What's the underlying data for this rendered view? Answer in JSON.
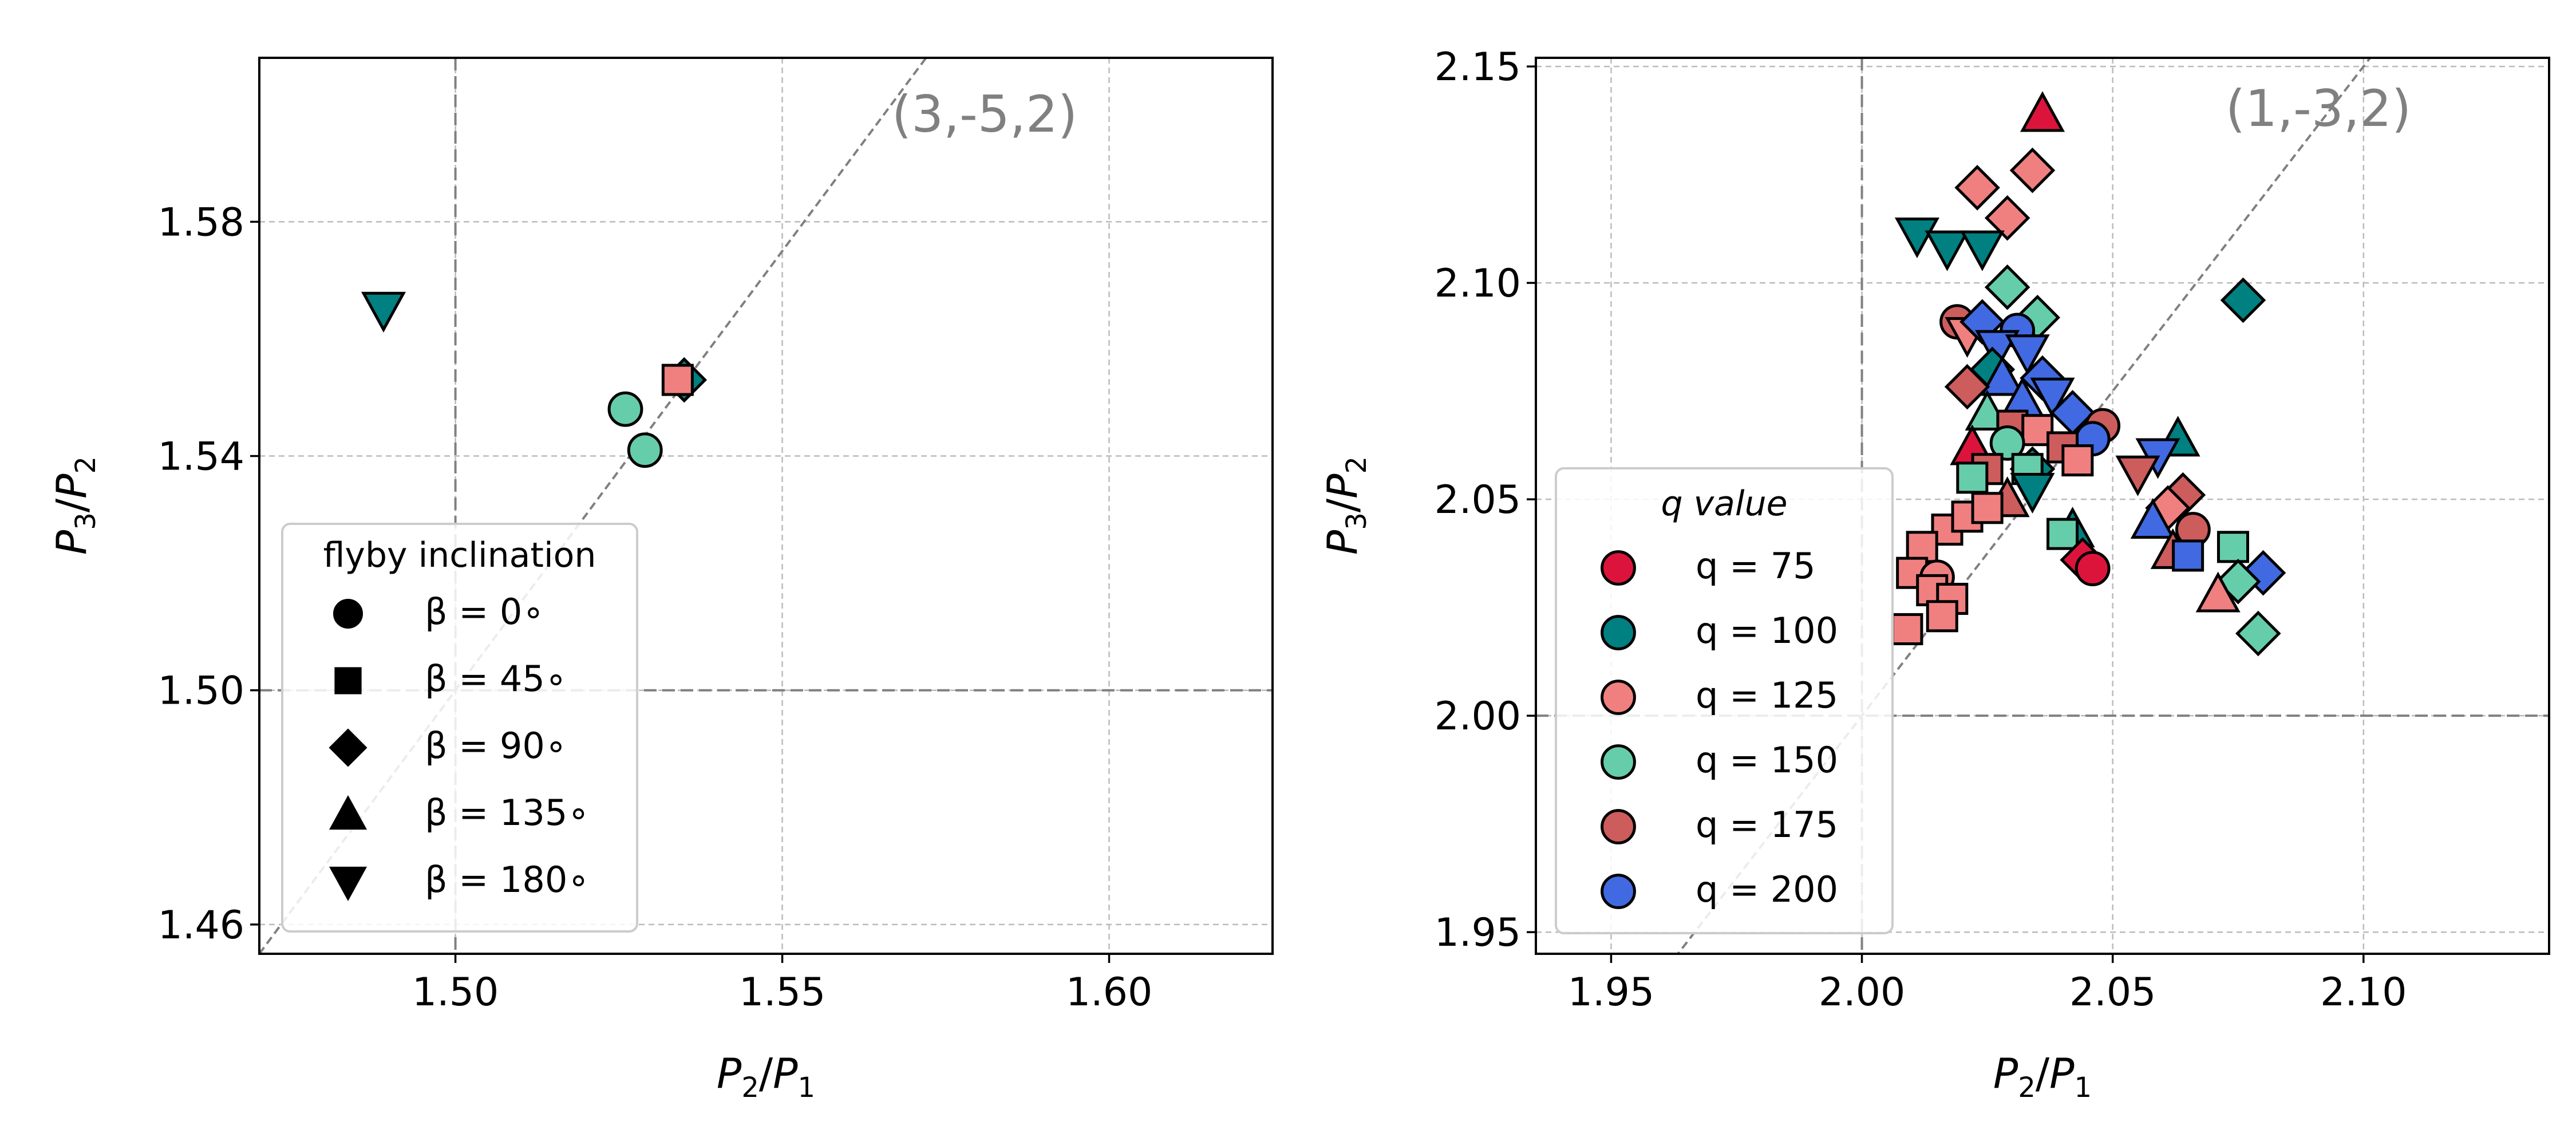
{
  "chart_data": [
    {
      "type": "scatter",
      "xlabel": "P2/P1",
      "ylabel": "P3/P2",
      "xlim": [
        1.47,
        1.625
      ],
      "ylim": [
        1.455,
        1.608
      ],
      "xticks": [
        1.5,
        1.55,
        1.6
      ],
      "yticks": [
        1.46,
        1.5,
        1.54,
        1.58
      ],
      "xtick_labels": [
        "1.50",
        "1.55",
        "1.60"
      ],
      "ytick_labels": [
        "1.46",
        "1.50",
        "1.54",
        "1.58"
      ],
      "grid": true,
      "reference_lines": {
        "x": 1.5,
        "y": 1.5
      },
      "resonance_line": {
        "label": "(3,-5,2)",
        "slope": 1.5,
        "intercept": -0.75
      },
      "legend": {
        "title": "flyby inclination",
        "placement": "lower-left",
        "entries": [
          {
            "label": "β = 0∘",
            "marker": "circle"
          },
          {
            "label": "β = 45∘",
            "marker": "square"
          },
          {
            "label": "β = 90∘",
            "marker": "diamond"
          },
          {
            "label": "β = 135∘",
            "marker": "triangle-up"
          },
          {
            "label": "β = 180∘",
            "marker": "triangle-down"
          }
        ]
      },
      "points": [
        {
          "x": 1.489,
          "y": 1.565,
          "marker": "triangle-down",
          "color": "#008080"
        },
        {
          "x": 1.526,
          "y": 1.548,
          "marker": "circle",
          "color": "#66CDAA"
        },
        {
          "x": 1.529,
          "y": 1.541,
          "marker": "circle",
          "color": "#66CDAA"
        },
        {
          "x": 1.535,
          "y": 1.553,
          "marker": "diamond",
          "color": "#008080"
        },
        {
          "x": 1.534,
          "y": 1.553,
          "marker": "square",
          "color": "#F08080"
        }
      ]
    },
    {
      "type": "scatter",
      "xlabel": "P2/P1",
      "ylabel": "P3/P2",
      "xlim": [
        1.935,
        2.137
      ],
      "ylim": [
        1.945,
        2.152
      ],
      "xticks": [
        1.95,
        2.0,
        2.05,
        2.1
      ],
      "yticks": [
        1.95,
        2.0,
        2.05,
        2.1,
        2.15
      ],
      "xtick_labels": [
        "1.95",
        "2.00",
        "2.05",
        "2.10"
      ],
      "ytick_labels": [
        "1.95",
        "2.00",
        "2.05",
        "2.10",
        "2.15"
      ],
      "grid": true,
      "reference_lines": {
        "x": 2.0,
        "y": 2.0
      },
      "resonance_line": {
        "label": "(1,-3,2)",
        "slope": 1.5,
        "intercept": -1.0
      },
      "legend": {
        "title": "q value",
        "placement": "lower-left",
        "entries": [
          {
            "label": "q = 75",
            "color": "#DC143C"
          },
          {
            "label": "q = 100",
            "color": "#008080"
          },
          {
            "label": "q = 125",
            "color": "#F08080"
          },
          {
            "label": "q = 150",
            "color": "#66CDAA"
          },
          {
            "label": "q = 175",
            "color": "#CD5C5C"
          },
          {
            "label": "q = 200",
            "color": "#4169E1"
          }
        ]
      },
      "points": [
        {
          "x": 2.036,
          "y": 2.139,
          "marker": "triangle-up",
          "color": "#DC143C"
        },
        {
          "x": 2.023,
          "y": 2.122,
          "marker": "diamond",
          "color": "#F08080"
        },
        {
          "x": 2.034,
          "y": 2.126,
          "marker": "diamond",
          "color": "#F08080"
        },
        {
          "x": 2.029,
          "y": 2.115,
          "marker": "diamond",
          "color": "#F08080"
        },
        {
          "x": 2.011,
          "y": 2.111,
          "marker": "triangle-down",
          "color": "#008080"
        },
        {
          "x": 2.017,
          "y": 2.108,
          "marker": "triangle-down",
          "color": "#008080"
        },
        {
          "x": 2.024,
          "y": 2.108,
          "marker": "triangle-down",
          "color": "#008080"
        },
        {
          "x": 2.076,
          "y": 2.096,
          "marker": "diamond",
          "color": "#008080"
        },
        {
          "x": 2.029,
          "y": 2.099,
          "marker": "diamond",
          "color": "#66CDAA"
        },
        {
          "x": 2.035,
          "y": 2.092,
          "marker": "diamond",
          "color": "#66CDAA"
        },
        {
          "x": 2.019,
          "y": 2.091,
          "marker": "circle",
          "color": "#CD5C5C"
        },
        {
          "x": 2.021,
          "y": 2.088,
          "marker": "triangle-down",
          "color": "#F08080"
        },
        {
          "x": 2.024,
          "y": 2.091,
          "marker": "diamond",
          "color": "#4169E1"
        },
        {
          "x": 2.031,
          "y": 2.089,
          "marker": "circle",
          "color": "#4169E1"
        },
        {
          "x": 2.027,
          "y": 2.085,
          "marker": "triangle-down",
          "color": "#4169E1"
        },
        {
          "x": 2.033,
          "y": 2.084,
          "marker": "triangle-down",
          "color": "#4169E1"
        },
        {
          "x": 2.026,
          "y": 2.08,
          "marker": "diamond",
          "color": "#008080"
        },
        {
          "x": 2.036,
          "y": 2.078,
          "marker": "diamond",
          "color": "#4169E1"
        },
        {
          "x": 2.028,
          "y": 2.078,
          "marker": "triangle-up",
          "color": "#4169E1"
        },
        {
          "x": 2.021,
          "y": 2.076,
          "marker": "diamond",
          "color": "#CD5C5C"
        },
        {
          "x": 2.032,
          "y": 2.073,
          "marker": "triangle-up",
          "color": "#4169E1"
        },
        {
          "x": 2.038,
          "y": 2.074,
          "marker": "triangle-down",
          "color": "#4169E1"
        },
        {
          "x": 2.042,
          "y": 2.07,
          "marker": "diamond",
          "color": "#4169E1"
        },
        {
          "x": 2.025,
          "y": 2.07,
          "marker": "triangle-up",
          "color": "#66CDAA"
        },
        {
          "x": 2.048,
          "y": 2.067,
          "marker": "circle",
          "color": "#CD5C5C"
        },
        {
          "x": 2.046,
          "y": 2.064,
          "marker": "circle",
          "color": "#4169E1"
        },
        {
          "x": 2.03,
          "y": 2.067,
          "marker": "square",
          "color": "#CD5C5C"
        },
        {
          "x": 2.035,
          "y": 2.066,
          "marker": "square",
          "color": "#F08080"
        },
        {
          "x": 2.04,
          "y": 2.062,
          "marker": "square",
          "color": "#CD5C5C"
        },
        {
          "x": 2.043,
          "y": 2.059,
          "marker": "square",
          "color": "#F08080"
        },
        {
          "x": 2.022,
          "y": 2.062,
          "marker": "triangle-up",
          "color": "#DC143C"
        },
        {
          "x": 2.029,
          "y": 2.063,
          "marker": "circle",
          "color": "#66CDAA"
        },
        {
          "x": 2.034,
          "y": 2.057,
          "marker": "diamond",
          "color": "#008080"
        },
        {
          "x": 2.025,
          "y": 2.057,
          "marker": "square",
          "color": "#CD5C5C"
        },
        {
          "x": 2.033,
          "y": 2.057,
          "marker": "square",
          "color": "#66CDAA"
        },
        {
          "x": 2.022,
          "y": 2.055,
          "marker": "square",
          "color": "#66CDAA"
        },
        {
          "x": 2.034,
          "y": 2.052,
          "marker": "triangle-down",
          "color": "#008080"
        },
        {
          "x": 2.029,
          "y": 2.05,
          "marker": "triangle-up",
          "color": "#CD5C5C"
        },
        {
          "x": 2.063,
          "y": 2.064,
          "marker": "triangle-up",
          "color": "#008080"
        },
        {
          "x": 2.059,
          "y": 2.06,
          "marker": "triangle-down",
          "color": "#4169E1"
        },
        {
          "x": 2.055,
          "y": 2.056,
          "marker": "triangle-down",
          "color": "#CD5C5C"
        },
        {
          "x": 2.064,
          "y": 2.051,
          "marker": "diamond",
          "color": "#CD5C5C"
        },
        {
          "x": 2.061,
          "y": 2.048,
          "marker": "diamond",
          "color": "#F08080"
        },
        {
          "x": 2.058,
          "y": 2.045,
          "marker": "triangle-up",
          "color": "#4169E1"
        },
        {
          "x": 2.066,
          "y": 2.043,
          "marker": "circle",
          "color": "#CD5C5C"
        },
        {
          "x": 2.042,
          "y": 2.043,
          "marker": "triangle-up",
          "color": "#008080"
        },
        {
          "x": 2.04,
          "y": 2.042,
          "marker": "square",
          "color": "#66CDAA"
        },
        {
          "x": 2.062,
          "y": 2.038,
          "marker": "triangle-up",
          "color": "#CD5C5C"
        },
        {
          "x": 2.065,
          "y": 2.037,
          "marker": "square",
          "color": "#4169E1"
        },
        {
          "x": 2.044,
          "y": 2.036,
          "marker": "diamond",
          "color": "#DC143C"
        },
        {
          "x": 2.046,
          "y": 2.034,
          "marker": "circle",
          "color": "#DC143C"
        },
        {
          "x": 2.074,
          "y": 2.039,
          "marker": "square",
          "color": "#66CDAA"
        },
        {
          "x": 2.08,
          "y": 2.033,
          "marker": "diamond",
          "color": "#4169E1"
        },
        {
          "x": 2.075,
          "y": 2.031,
          "marker": "diamond",
          "color": "#66CDAA"
        },
        {
          "x": 2.071,
          "y": 2.028,
          "marker": "triangle-up",
          "color": "#F08080"
        },
        {
          "x": 2.079,
          "y": 2.019,
          "marker": "diamond",
          "color": "#66CDAA"
        },
        {
          "x": 2.017,
          "y": 2.043,
          "marker": "square",
          "color": "#F08080"
        },
        {
          "x": 2.021,
          "y": 2.046,
          "marker": "square",
          "color": "#F08080"
        },
        {
          "x": 2.025,
          "y": 2.048,
          "marker": "square",
          "color": "#F08080"
        },
        {
          "x": 2.012,
          "y": 2.039,
          "marker": "square",
          "color": "#F08080"
        },
        {
          "x": 2.01,
          "y": 2.033,
          "marker": "square",
          "color": "#F08080"
        },
        {
          "x": 2.015,
          "y": 2.032,
          "marker": "circle",
          "color": "#F08080"
        },
        {
          "x": 2.014,
          "y": 2.029,
          "marker": "square",
          "color": "#F08080"
        },
        {
          "x": 2.018,
          "y": 2.027,
          "marker": "square",
          "color": "#F08080"
        },
        {
          "x": 2.016,
          "y": 2.023,
          "marker": "square",
          "color": "#F08080"
        },
        {
          "x": 2.009,
          "y": 2.02,
          "marker": "square",
          "color": "#F08080"
        }
      ]
    }
  ]
}
